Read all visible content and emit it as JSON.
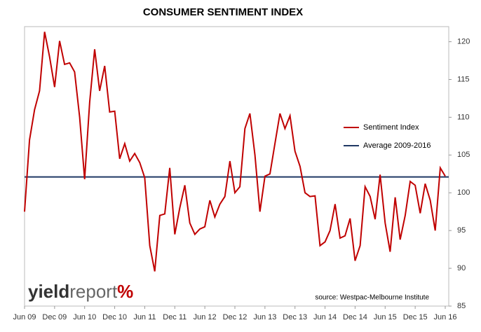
{
  "chart_data": {
    "type": "line",
    "title": "CONSUMER SENTIMENT INDEX",
    "categories": [
      "Jun 09",
      null,
      null,
      null,
      null,
      null,
      "Dec 09",
      null,
      null,
      null,
      null,
      null,
      "Jun 10",
      null,
      null,
      null,
      null,
      null,
      "Dec 10",
      null,
      null,
      null,
      null,
      null,
      "Jun 11",
      null,
      null,
      null,
      null,
      null,
      "Dec 11",
      null,
      null,
      null,
      null,
      null,
      "Jun 12",
      null,
      null,
      null,
      null,
      null,
      "Dec 12",
      null,
      null,
      null,
      null,
      null,
      "Jun 13",
      null,
      null,
      null,
      null,
      null,
      "Dec 13",
      null,
      null,
      null,
      null,
      null,
      "Jun 14",
      null,
      null,
      null,
      null,
      null,
      "Dec 14",
      null,
      null,
      null,
      null,
      null,
      "Jun 15",
      null,
      null,
      null,
      null,
      null,
      "Dec 15",
      null,
      null,
      null,
      null,
      null,
      "Jun 16"
    ],
    "series": [
      {
        "name": "Sentiment Index",
        "color": "#c00000",
        "values": [
          97.5,
          107,
          111,
          113.5,
          121.3,
          118,
          114,
          120.1,
          117,
          117.2,
          116,
          110,
          101.8,
          112,
          119,
          113.5,
          116.8,
          110.7,
          110.8,
          104.5,
          106.5,
          104.2,
          105.2,
          104,
          102,
          93,
          89.6,
          97,
          97.2,
          103.3,
          94.5,
          98,
          101,
          96,
          94.5,
          95.2,
          95.5,
          99,
          96.8,
          98.5,
          99.5,
          104.2,
          100,
          100.8,
          108.5,
          110.5,
          105,
          97.5,
          102.2,
          102.5,
          106.5,
          110.5,
          108.5,
          110.2,
          105.5,
          103.5,
          100,
          99.5,
          99.6,
          93,
          93.5,
          95,
          98.5,
          94,
          94.3,
          96.6,
          91,
          93,
          100.8,
          99.5,
          96.5,
          102.4,
          96,
          92.2,
          99.4,
          93.8,
          97,
          101.5,
          101,
          97.3,
          101.2,
          99,
          95,
          103.3,
          102.2
        ]
      }
    ],
    "average": {
      "name": "Average 2009-2016",
      "color": "#1f3864",
      "value": 102.1
    },
    "ylim": [
      85,
      122
    ],
    "yticks": [
      85,
      90,
      95,
      100,
      105,
      110,
      115,
      120
    ],
    "source": "source: Westpac-Melbourne Institute",
    "logo": [
      "yield",
      "report",
      "%"
    ]
  }
}
